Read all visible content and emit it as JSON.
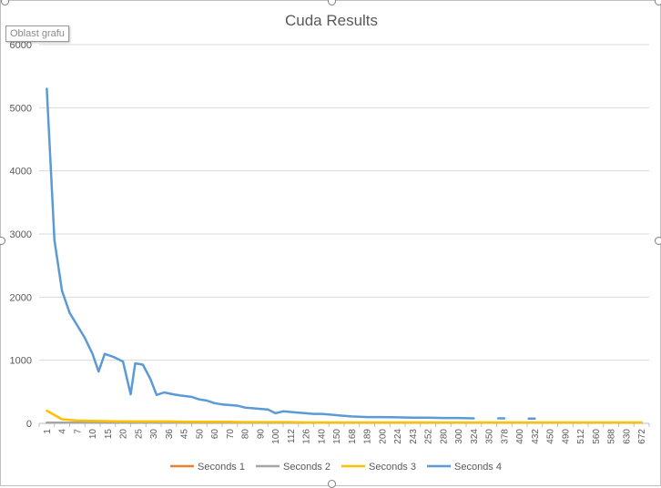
{
  "chart": {
    "tooltip": "Oblast grafu"
  },
  "chart_data": {
    "type": "line",
    "title": "Cuda Results",
    "xlabel": "",
    "ylabel": "",
    "ylim": [
      0,
      6000
    ],
    "y_ticks": [
      "0",
      "1000",
      "2000",
      "3000",
      "4000",
      "5000",
      "6000"
    ],
    "x_tick_labels": [
      "1",
      "4",
      "7",
      "10",
      "15",
      "20",
      "25",
      "30",
      "36",
      "45",
      "50",
      "60",
      "70",
      "80",
      "90",
      "100",
      "112",
      "126",
      "140",
      "150",
      "168",
      "189",
      "200",
      "224",
      "243",
      "252",
      "280",
      "300",
      "324",
      "350",
      "378",
      "400",
      "432",
      "450",
      "490",
      "512",
      "560",
      "588",
      "630",
      "672"
    ],
    "grid": true,
    "legend_position": "bottom",
    "series": [
      {
        "name": "Seconds 1",
        "color": "#ed7d31",
        "values": [
          10,
          10,
          10,
          10,
          10,
          10,
          10,
          10,
          10,
          10,
          10,
          10,
          10,
          10,
          10,
          10,
          10,
          10,
          10,
          10,
          10,
          10,
          10,
          10,
          10,
          10,
          10,
          10,
          10,
          10,
          10,
          10,
          10,
          10,
          10,
          10,
          10,
          10,
          10,
          10
        ]
      },
      {
        "name": "Seconds 2",
        "color": "#a5a5a5",
        "values": [
          10,
          10,
          10,
          10,
          10,
          10,
          10,
          10,
          10,
          10,
          10,
          10,
          10,
          10,
          10,
          10,
          10,
          10,
          10,
          10,
          10,
          10,
          10,
          10,
          10,
          10,
          10,
          10,
          10,
          10,
          10,
          10,
          10,
          10,
          10,
          10,
          10,
          10,
          10,
          10
        ]
      },
      {
        "name": "Seconds 3",
        "color": "#ffc000",
        "values": [
          200,
          65,
          45,
          40,
          35,
          30,
          30,
          30,
          30,
          25,
          25,
          25,
          25,
          20,
          20,
          20,
          20,
          15,
          15,
          15,
          15,
          15,
          15,
          15,
          15,
          15,
          15,
          15,
          15,
          15,
          15,
          15,
          15,
          15,
          15,
          15,
          15,
          15,
          15,
          15
        ]
      },
      {
        "name": "Seconds 4",
        "color": "#5b9bd5",
        "points": [
          [
            0,
            5300
          ],
          [
            0.5,
            2900
          ],
          [
            1,
            2100
          ],
          [
            1.5,
            1750
          ],
          [
            2,
            1550
          ],
          [
            2.5,
            1350
          ],
          [
            3,
            1100
          ],
          [
            3.4,
            820
          ],
          [
            3.8,
            1100
          ],
          [
            4.4,
            1050
          ],
          [
            5,
            980
          ],
          [
            5.5,
            460
          ],
          [
            5.8,
            950
          ],
          [
            6.3,
            930
          ],
          [
            6.8,
            700
          ],
          [
            7.2,
            450
          ],
          [
            7.7,
            490
          ],
          [
            8.3,
            460
          ],
          [
            8.8,
            440
          ],
          [
            9.5,
            420
          ],
          [
            10,
            380
          ],
          [
            10.5,
            360
          ],
          [
            11,
            320
          ],
          [
            11.5,
            300
          ],
          [
            12,
            290
          ],
          [
            12.5,
            280
          ],
          [
            13,
            250
          ],
          [
            13.5,
            240
          ],
          [
            14,
            230
          ],
          [
            14.5,
            220
          ],
          [
            15,
            160
          ],
          [
            15.5,
            190
          ],
          [
            16,
            180
          ],
          [
            16.5,
            170
          ],
          [
            17,
            160
          ],
          [
            17.5,
            150
          ],
          [
            18,
            150
          ],
          [
            18.5,
            140
          ],
          [
            19,
            130
          ],
          [
            19.5,
            120
          ],
          [
            20,
            110
          ],
          [
            21,
            100
          ],
          [
            22,
            100
          ],
          [
            23,
            95
          ],
          [
            24,
            90
          ],
          [
            25,
            90
          ],
          [
            26,
            85
          ],
          [
            27,
            85
          ],
          [
            28,
            80
          ],
          null,
          [
            29.6,
            80
          ],
          [
            30,
            80
          ],
          null,
          [
            31.6,
            75
          ],
          [
            32,
            75
          ]
        ]
      }
    ]
  }
}
